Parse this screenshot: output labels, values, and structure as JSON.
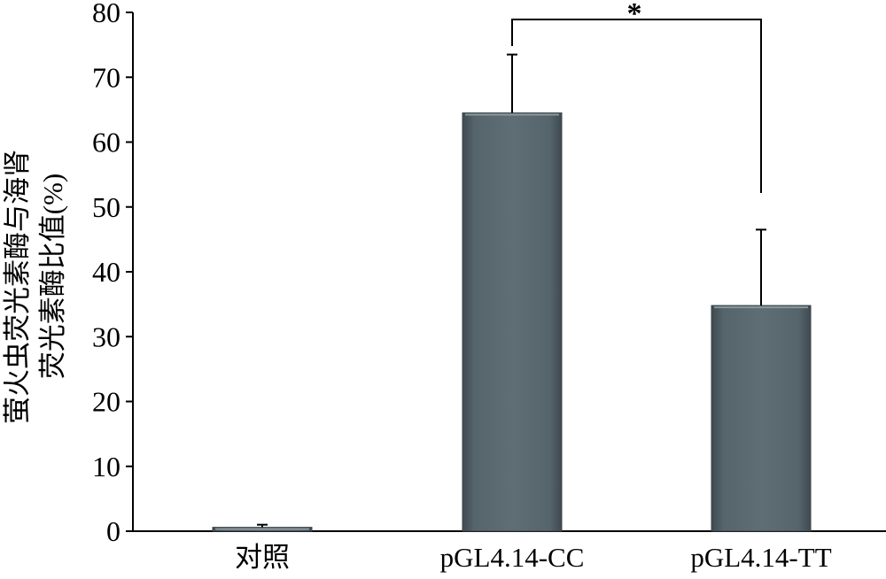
{
  "chart_data": {
    "type": "bar",
    "categories": [
      "对照",
      "pGL4.14-CC",
      "pGL4.14-TT"
    ],
    "values": [
      0.6,
      64.5,
      34.8
    ],
    "error_plus": [
      0.4,
      9.0,
      11.7
    ],
    "ylabel_lines": [
      "萤火虫荧光素酶与海肾",
      "荧光素酶比值(%)"
    ],
    "ylim": [
      0,
      80
    ],
    "yticks": [
      0,
      10,
      20,
      30,
      40,
      50,
      60,
      70,
      80
    ],
    "ytick_labels": [
      "0",
      "10",
      "20",
      "30",
      "40",
      "50",
      "60",
      "70",
      "80"
    ],
    "grid": false,
    "legend": "none",
    "bar_color": "#56646b",
    "significance": {
      "from_category": 1,
      "to_category": 2,
      "label": "*"
    }
  }
}
